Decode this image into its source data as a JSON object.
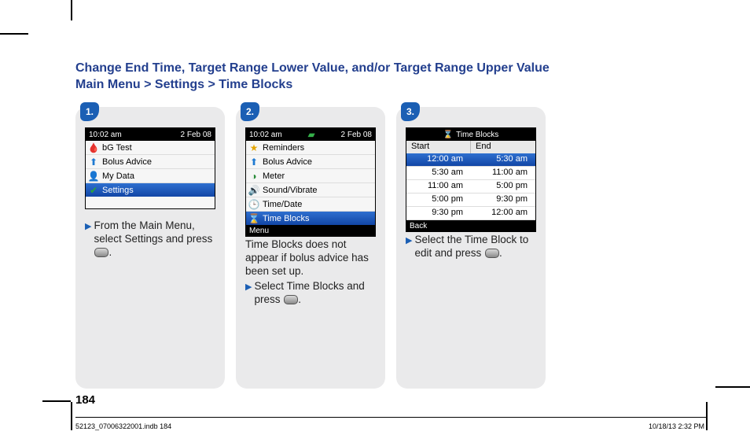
{
  "title": {
    "line1": "Change End Time, Target Range Lower Value, and/or Target Range Upper Value",
    "line2": "Main Menu > Settings > Time Blocks"
  },
  "badges": {
    "one": "1.",
    "two": "2.",
    "three": "3."
  },
  "statusbar": {
    "time": "10:02 am",
    "date": "2 Feb 08"
  },
  "menu1": {
    "items": [
      {
        "label": "bG Test",
        "icon": "🩸",
        "color": "#c62222"
      },
      {
        "label": "Bolus Advice",
        "icon": "⬆︎",
        "color": "#1f7ad1"
      },
      {
        "label": "My Data",
        "icon": "👤",
        "color": "#d4a63a"
      },
      {
        "label": "Settings",
        "icon": "✔︎",
        "color": "#2aa63a",
        "selected": true
      }
    ]
  },
  "menu2": {
    "items": [
      {
        "label": "Reminders",
        "icon": "★",
        "color": "#e4a500"
      },
      {
        "label": "Bolus Advice",
        "icon": "⬆︎",
        "color": "#1f7ad1"
      },
      {
        "label": "Meter",
        "icon": "◑",
        "color": "#2a8c3a"
      },
      {
        "label": "Sound/Vibrate",
        "icon": "🔊",
        "color": "#3aa0c8"
      },
      {
        "label": "Time/Date",
        "icon": "🕒",
        "color": "#b05a12"
      },
      {
        "label": "Time Blocks",
        "icon": "⌛",
        "color": "#2e7aa8",
        "selected": true
      }
    ],
    "softkey": "Menu"
  },
  "timeblocks": {
    "title": "Time Blocks",
    "col1": "Start",
    "col2": "End",
    "rows": [
      [
        "12:00 am",
        "5:30 am"
      ],
      [
        "5:30 am",
        "11:00 am"
      ],
      [
        "11:00 am",
        "5:00 pm"
      ],
      [
        "5:00 pm",
        "9:30 pm"
      ],
      [
        "9:30 pm",
        "12:00 am"
      ]
    ],
    "softkey": "Back"
  },
  "instructions": {
    "c1a": "From the Main Menu, select Settings and press ",
    "c2a": "Time Blocks does not appear if bolus advice has been set up.",
    "c2b": "Select Time Blocks and press",
    "c3a": "Select the Time Block to edit and press "
  },
  "page_number": "184",
  "footer": {
    "left": "52123_07006322001.indb   184",
    "right": "10/18/13   2:32 PM"
  }
}
